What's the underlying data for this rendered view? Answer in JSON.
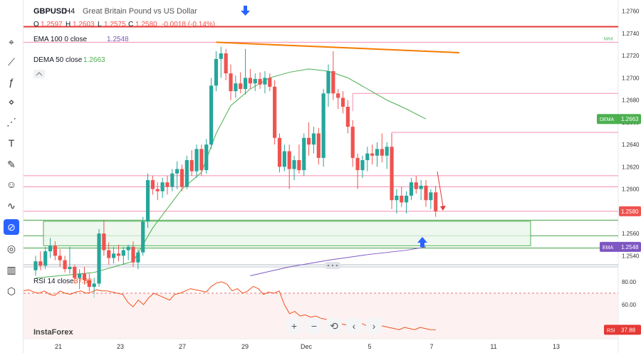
{
  "header": {
    "symbol": "GBPUSD",
    "timeframe": "H4",
    "description": "Great Britain Pound vs US Dollar",
    "ohlc": {
      "o_label": "O",
      "o": "1.2597",
      "h_label": "H",
      "h": "1.2603",
      "l_label": "L",
      "l": "1.2575",
      "c_label": "C",
      "c": "1.2580",
      "change": "-0.0018 (-0.14%)"
    }
  },
  "indicators": {
    "ema": {
      "label": "EMA 100 0 close",
      "value": "1.2548",
      "color": "#7e57c2"
    },
    "dema": {
      "label": "DEMA 50 close",
      "value": "1.2663",
      "color": "#4caf50"
    },
    "rsi": {
      "label": "RSI 14 close",
      "value": "37.88",
      "color": "#f4511e"
    }
  },
  "price_axis": {
    "ticks": [
      "1.2760",
      "1.2740",
      "1.2720",
      "1.2700",
      "1.2680",
      "1.2660",
      "1.2640",
      "1.2620",
      "1.2600",
      "1.2580",
      "1.2560",
      "1.2540"
    ],
    "max_label": "MAX",
    "price_badge": "1.2580",
    "dema_badge": {
      "name": "DEMA",
      "value": "1.2663"
    },
    "ema_badge": {
      "name": "EMA",
      "value": "1.2548"
    }
  },
  "rsi_axis": {
    "ticks": [
      "80.00",
      "60.00"
    ],
    "badge": {
      "name": "RSI",
      "value": "37.88"
    }
  },
  "time_axis": {
    "labels": [
      "21",
      "23",
      "27",
      "29",
      "Dec",
      "5",
      "7",
      "11",
      "13"
    ]
  },
  "watermark": "InstaForex",
  "zoom_controls": [
    "+",
    "−",
    "⟲",
    "‹",
    "›"
  ],
  "colors": {
    "up": "#26a69a",
    "down": "#ef5350",
    "trendline": "#f57c00",
    "zone_fill": "#e8f5e9",
    "zone_border": "#4caf50",
    "resistance": "#e53935",
    "arrow": "#2962ff"
  },
  "chart_data": {
    "type": "candlestick",
    "ylim": [
      1.253,
      1.277
    ],
    "candles": [
      {
        "o": 1.2527,
        "h": 1.254,
        "l": 1.2522,
        "c": 1.2535
      },
      {
        "o": 1.2535,
        "h": 1.2544,
        "l": 1.2527,
        "c": 1.2531
      },
      {
        "o": 1.2531,
        "h": 1.2548,
        "l": 1.2528,
        "c": 1.2544
      },
      {
        "o": 1.2544,
        "h": 1.2556,
        "l": 1.2538,
        "c": 1.2549
      },
      {
        "o": 1.2549,
        "h": 1.2553,
        "l": 1.2536,
        "c": 1.254
      },
      {
        "o": 1.254,
        "h": 1.2546,
        "l": 1.253,
        "c": 1.2536
      },
      {
        "o": 1.2536,
        "h": 1.254,
        "l": 1.2525,
        "c": 1.2528
      },
      {
        "o": 1.2528,
        "h": 1.2548,
        "l": 1.2524,
        "c": 1.253
      },
      {
        "o": 1.253,
        "h": 1.2532,
        "l": 1.2515,
        "c": 1.252
      },
      {
        "o": 1.252,
        "h": 1.2528,
        "l": 1.251,
        "c": 1.2524
      },
      {
        "o": 1.2524,
        "h": 1.253,
        "l": 1.2514,
        "c": 1.2518
      },
      {
        "o": 1.2518,
        "h": 1.2524,
        "l": 1.2508,
        "c": 1.2512
      },
      {
        "o": 1.2512,
        "h": 1.252,
        "l": 1.2502,
        "c": 1.2515
      },
      {
        "o": 1.2515,
        "h": 1.2564,
        "l": 1.2512,
        "c": 1.256
      },
      {
        "o": 1.256,
        "h": 1.2572,
        "l": 1.254,
        "c": 1.2545
      },
      {
        "o": 1.2545,
        "h": 1.2552,
        "l": 1.2532,
        "c": 1.2538
      },
      {
        "o": 1.2538,
        "h": 1.2548,
        "l": 1.2533,
        "c": 1.2542
      },
      {
        "o": 1.2542,
        "h": 1.255,
        "l": 1.2535,
        "c": 1.254
      },
      {
        "o": 1.254,
        "h": 1.2548,
        "l": 1.2532,
        "c": 1.2545
      },
      {
        "o": 1.2545,
        "h": 1.255,
        "l": 1.2536,
        "c": 1.2548
      },
      {
        "o": 1.2548,
        "h": 1.2553,
        "l": 1.253,
        "c": 1.2534
      },
      {
        "o": 1.2534,
        "h": 1.2546,
        "l": 1.2528,
        "c": 1.2543
      },
      {
        "o": 1.2543,
        "h": 1.2575,
        "l": 1.254,
        "c": 1.2571
      },
      {
        "o": 1.2571,
        "h": 1.2614,
        "l": 1.2565,
        "c": 1.2608
      },
      {
        "o": 1.2608,
        "h": 1.2612,
        "l": 1.2595,
        "c": 1.26
      },
      {
        "o": 1.26,
        "h": 1.2606,
        "l": 1.259,
        "c": 1.2598
      },
      {
        "o": 1.2598,
        "h": 1.261,
        "l": 1.2592,
        "c": 1.2606
      },
      {
        "o": 1.2606,
        "h": 1.2612,
        "l": 1.2595,
        "c": 1.2602
      },
      {
        "o": 1.2602,
        "h": 1.2618,
        "l": 1.2598,
        "c": 1.2614
      },
      {
        "o": 1.2614,
        "h": 1.2625,
        "l": 1.26,
        "c": 1.2618
      },
      {
        "o": 1.2618,
        "h": 1.2622,
        "l": 1.2598,
        "c": 1.2602
      },
      {
        "o": 1.2602,
        "h": 1.263,
        "l": 1.26,
        "c": 1.2626
      },
      {
        "o": 1.2626,
        "h": 1.2635,
        "l": 1.2612,
        "c": 1.2616
      },
      {
        "o": 1.2616,
        "h": 1.264,
        "l": 1.261,
        "c": 1.2636
      },
      {
        "o": 1.2636,
        "h": 1.264,
        "l": 1.2612,
        "c": 1.2617
      },
      {
        "o": 1.2617,
        "h": 1.2645,
        "l": 1.2614,
        "c": 1.264
      },
      {
        "o": 1.264,
        "h": 1.27,
        "l": 1.2636,
        "c": 1.2693
      },
      {
        "o": 1.2693,
        "h": 1.2724,
        "l": 1.2688,
        "c": 1.2717
      },
      {
        "o": 1.2717,
        "h": 1.2728,
        "l": 1.27,
        "c": 1.2722
      },
      {
        "o": 1.2722,
        "h": 1.2726,
        "l": 1.2698,
        "c": 1.2704
      },
      {
        "o": 1.2704,
        "h": 1.2712,
        "l": 1.268,
        "c": 1.2688
      },
      {
        "o": 1.2688,
        "h": 1.2702,
        "l": 1.2682,
        "c": 1.2695
      },
      {
        "o": 1.2695,
        "h": 1.2705,
        "l": 1.2686,
        "c": 1.269
      },
      {
        "o": 1.269,
        "h": 1.2726,
        "l": 1.2685,
        "c": 1.27
      },
      {
        "o": 1.27,
        "h": 1.2708,
        "l": 1.269,
        "c": 1.2695
      },
      {
        "o": 1.2695,
        "h": 1.2704,
        "l": 1.2688,
        "c": 1.2699
      },
      {
        "o": 1.2699,
        "h": 1.2705,
        "l": 1.269,
        "c": 1.2694
      },
      {
        "o": 1.2694,
        "h": 1.2706,
        "l": 1.2686,
        "c": 1.27
      },
      {
        "o": 1.27,
        "h": 1.2704,
        "l": 1.2688,
        "c": 1.2692
      },
      {
        "o": 1.2692,
        "h": 1.2698,
        "l": 1.264,
        "c": 1.2646
      },
      {
        "o": 1.2646,
        "h": 1.265,
        "l": 1.2615,
        "c": 1.262
      },
      {
        "o": 1.262,
        "h": 1.264,
        "l": 1.2616,
        "c": 1.2634
      },
      {
        "o": 1.2634,
        "h": 1.264,
        "l": 1.26,
        "c": 1.2618
      },
      {
        "o": 1.2618,
        "h": 1.263,
        "l": 1.2608,
        "c": 1.2626
      },
      {
        "o": 1.2626,
        "h": 1.264,
        "l": 1.2614,
        "c": 1.2617
      },
      {
        "o": 1.2617,
        "h": 1.265,
        "l": 1.2612,
        "c": 1.2646
      },
      {
        "o": 1.2646,
        "h": 1.266,
        "l": 1.263,
        "c": 1.264
      },
      {
        "o": 1.264,
        "h": 1.2656,
        "l": 1.2632,
        "c": 1.265
      },
      {
        "o": 1.265,
        "h": 1.2655,
        "l": 1.2622,
        "c": 1.2628
      },
      {
        "o": 1.2628,
        "h": 1.269,
        "l": 1.262,
        "c": 1.2686
      },
      {
        "o": 1.2686,
        "h": 1.2712,
        "l": 1.2674,
        "c": 1.2706
      },
      {
        "o": 1.2706,
        "h": 1.2724,
        "l": 1.268,
        "c": 1.2686
      },
      {
        "o": 1.2686,
        "h": 1.269,
        "l": 1.2672,
        "c": 1.2682
      },
      {
        "o": 1.2682,
        "h": 1.2688,
        "l": 1.2668,
        "c": 1.2674
      },
      {
        "o": 1.2674,
        "h": 1.268,
        "l": 1.265,
        "c": 1.2656
      },
      {
        "o": 1.2656,
        "h": 1.2662,
        "l": 1.262,
        "c": 1.2628
      },
      {
        "o": 1.2628,
        "h": 1.2632,
        "l": 1.26,
        "c": 1.2617
      },
      {
        "o": 1.2617,
        "h": 1.263,
        "l": 1.261,
        "c": 1.2626
      },
      {
        "o": 1.2626,
        "h": 1.2638,
        "l": 1.2616,
        "c": 1.2632
      },
      {
        "o": 1.2632,
        "h": 1.264,
        "l": 1.2622,
        "c": 1.263
      },
      {
        "o": 1.263,
        "h": 1.2642,
        "l": 1.262,
        "c": 1.2636
      },
      {
        "o": 1.2636,
        "h": 1.265,
        "l": 1.2624,
        "c": 1.263
      },
      {
        "o": 1.263,
        "h": 1.2642,
        "l": 1.2618,
        "c": 1.2638
      },
      {
        "o": 1.2638,
        "h": 1.265,
        "l": 1.2582,
        "c": 1.259
      },
      {
        "o": 1.259,
        "h": 1.26,
        "l": 1.2578,
        "c": 1.2594
      },
      {
        "o": 1.2594,
        "h": 1.2602,
        "l": 1.2584,
        "c": 1.2588
      },
      {
        "o": 1.2588,
        "h": 1.2598,
        "l": 1.2578,
        "c": 1.2594
      },
      {
        "o": 1.2594,
        "h": 1.261,
        "l": 1.259,
        "c": 1.2606
      },
      {
        "o": 1.2606,
        "h": 1.2612,
        "l": 1.2596,
        "c": 1.26
      },
      {
        "o": 1.26,
        "h": 1.2608,
        "l": 1.259,
        "c": 1.2603
      },
      {
        "o": 1.2603,
        "h": 1.2608,
        "l": 1.2584,
        "c": 1.259
      },
      {
        "o": 1.259,
        "h": 1.26,
        "l": 1.2582,
        "c": 1.2597
      },
      {
        "o": 1.2597,
        "h": 1.2603,
        "l": 1.2575,
        "c": 1.258
      }
    ],
    "dema": [
      [
        0,
        1.252
      ],
      [
        12,
        1.2525
      ],
      [
        20,
        1.2535
      ],
      [
        24,
        1.2565
      ],
      [
        30,
        1.26
      ],
      [
        34,
        1.2615
      ],
      [
        37,
        1.265
      ],
      [
        40,
        1.2675
      ],
      [
        44,
        1.269
      ],
      [
        48,
        1.27
      ],
      [
        52,
        1.2705
      ],
      [
        56,
        1.2708
      ],
      [
        60,
        1.2706
      ],
      [
        64,
        1.27
      ],
      [
        68,
        1.269
      ],
      [
        72,
        1.268
      ],
      [
        76,
        1.2672
      ],
      [
        80,
        1.2663
      ]
    ],
    "ema": [
      [
        44,
        1.2522
      ],
      [
        52,
        1.253
      ],
      [
        60,
        1.2536
      ],
      [
        68,
        1.2541
      ],
      [
        76,
        1.2545
      ],
      [
        80,
        1.2548
      ]
    ],
    "levels": {
      "resistance_red": 1.2746,
      "max_line": 1.2732,
      "pink": [
        1.2686,
        1.2651,
        1.2612,
        1.2602,
        1.258
      ],
      "green": [
        1.2572,
        1.2558,
        1.2547
      ],
      "zone": [
        1.2549,
        1.2571
      ]
    },
    "trendline": [
      [
        37,
        1.2732
      ],
      [
        62,
        1.2712
      ],
      [
        82,
        1.2712
      ]
    ],
    "rsi": {
      "ylim": [
        30,
        90
      ],
      "overbought": 70,
      "values": [
        72,
        73,
        71,
        70,
        72,
        69,
        68,
        72,
        70,
        69,
        71,
        72,
        70,
        71,
        73,
        72,
        72,
        71,
        70,
        69,
        62,
        58,
        64,
        60,
        66,
        70,
        68,
        66,
        64,
        69,
        70,
        72,
        74,
        73,
        72,
        71,
        76,
        79,
        80,
        78,
        72,
        74,
        70,
        72,
        76,
        74,
        69,
        71,
        70,
        72,
        60,
        52,
        54,
        50,
        51,
        49,
        50,
        48,
        47,
        46,
        44,
        43,
        42,
        44,
        45,
        43,
        41,
        40,
        42,
        41,
        40,
        39,
        38,
        40,
        39,
        38,
        40,
        39,
        38,
        37.88
      ]
    }
  }
}
